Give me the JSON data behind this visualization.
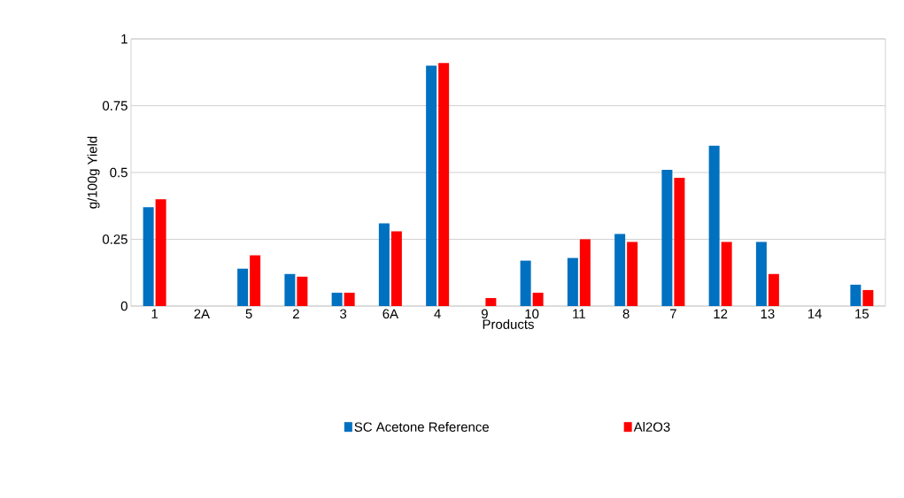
{
  "chart_data": {
    "type": "bar",
    "ylabel": "g/100g Yield",
    "xlabel": "Products",
    "categories": [
      "1",
      "2A",
      "5",
      "2",
      "3",
      "6A",
      "4",
      "9",
      "10",
      "11",
      "8",
      "7",
      "12",
      "13",
      "14",
      "15"
    ],
    "series": [
      {
        "name": "SC Acetone Reference",
        "color": "#0070c0",
        "values": [
          0.37,
          0,
          0.14,
          0.12,
          0.05,
          0.31,
          0.9,
          0,
          0.17,
          0.18,
          0.27,
          0.51,
          0.6,
          0.24,
          0,
          0.08
        ]
      },
      {
        "name": "Al2O3",
        "color": "#ff0000",
        "values": [
          0.4,
          0,
          0.19,
          0.11,
          0.05,
          0.28,
          0.91,
          0.03,
          0.05,
          0.25,
          0.24,
          0.48,
          0.24,
          0.12,
          0,
          0.06
        ]
      }
    ],
    "ylim": [
      0,
      1
    ],
    "yticks": [
      0,
      {
        "value": 0.25,
        "label": "0.25"
      },
      {
        "value": 0.5,
        "label": "0.5"
      },
      {
        "value": 0.75,
        "label": "0.75"
      },
      1
    ],
    "grid": "y",
    "legend": "bottom"
  }
}
